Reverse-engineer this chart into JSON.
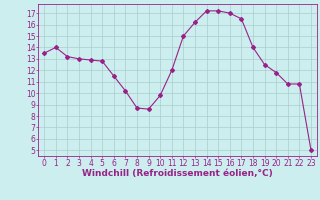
{
  "x": [
    0,
    1,
    2,
    3,
    4,
    5,
    6,
    7,
    8,
    9,
    10,
    11,
    12,
    13,
    14,
    15,
    16,
    17,
    18,
    19,
    20,
    21,
    22,
    23
  ],
  "y": [
    13.5,
    14.0,
    13.2,
    13.0,
    12.9,
    12.8,
    11.5,
    10.2,
    8.7,
    8.6,
    9.8,
    12.0,
    15.0,
    16.2,
    17.2,
    17.2,
    17.0,
    16.5,
    14.0,
    12.5,
    11.8,
    10.8,
    10.8,
    5.0
  ],
  "line_color": "#992288",
  "marker": "D",
  "marker_size": 2,
  "bg_color": "#cceeee",
  "grid_color": "#aacccc",
  "xlabel": "Windchill (Refroidissement éolien,°C)",
  "xlim": [
    -0.5,
    23.5
  ],
  "ylim": [
    4.5,
    17.8
  ],
  "yticks": [
    5,
    6,
    7,
    8,
    9,
    10,
    11,
    12,
    13,
    14,
    15,
    16,
    17
  ],
  "xticks": [
    0,
    1,
    2,
    3,
    4,
    5,
    6,
    7,
    8,
    9,
    10,
    11,
    12,
    13,
    14,
    15,
    16,
    17,
    18,
    19,
    20,
    21,
    22,
    23
  ],
  "tick_fontsize": 5.5,
  "label_fontsize": 6.5
}
